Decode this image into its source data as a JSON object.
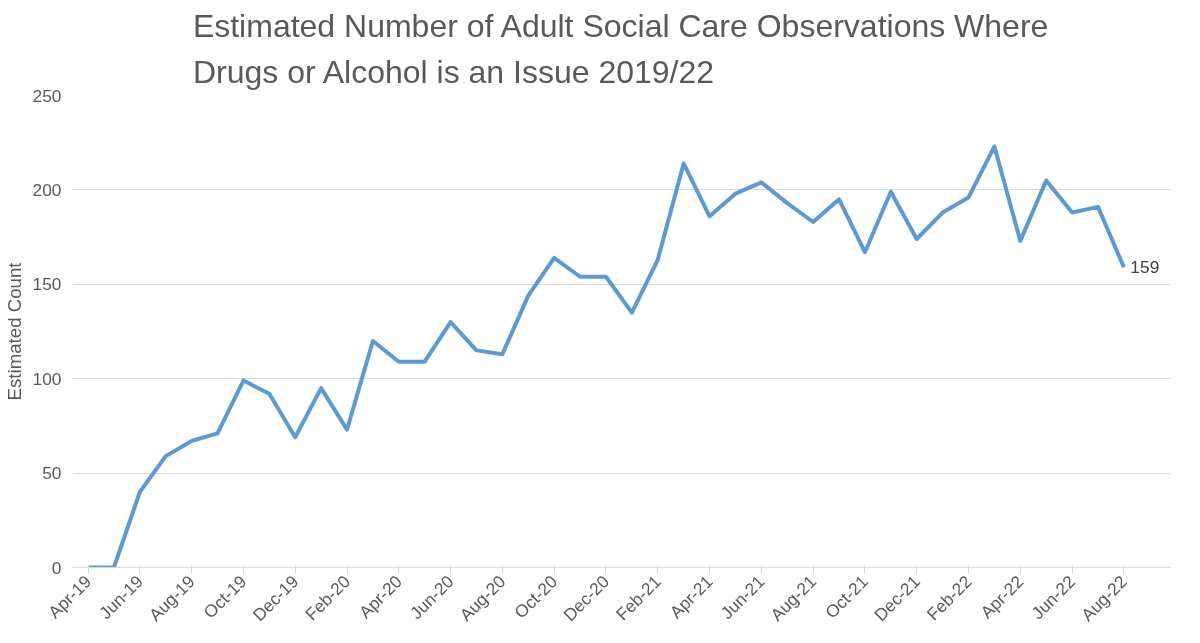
{
  "chart_data": {
    "type": "line",
    "title": "Estimated Number of Adult Social Care Observations Where\nDrugs or Alcohol is an Issue 2019/22",
    "ylabel": "Estimated Count",
    "categories": [
      "Apr-19",
      null,
      "Jun-19",
      null,
      "Aug-19",
      null,
      "Oct-19",
      null,
      "Dec-19",
      null,
      "Feb-20",
      null,
      "Apr-20",
      null,
      "Jun-20",
      null,
      "Aug-20",
      null,
      "Oct-20",
      null,
      "Dec-20",
      null,
      "Feb-21",
      null,
      "Apr-21",
      null,
      "Jun-21",
      null,
      "Aug-21",
      null,
      "Oct-21",
      null,
      "Dec-21",
      null,
      "Feb-22",
      null,
      "Apr-22",
      null,
      "Jun-22",
      null,
      "Aug-22"
    ],
    "series": [
      {
        "color": "#5b9bd5",
        "values": [
          0,
          0,
          40,
          59,
          67,
          71,
          99,
          92,
          69,
          95,
          73,
          120,
          109,
          109,
          130,
          115,
          113,
          144,
          164,
          154,
          154,
          135,
          163,
          214,
          186,
          198,
          204,
          193,
          183,
          195,
          167,
          199,
          174,
          188,
          196,
          223,
          173,
          205,
          188,
          191,
          159
        ],
        "value_labels": [
          null,
          null,
          null,
          null,
          null,
          null,
          null,
          null,
          null,
          null,
          null,
          null,
          null,
          null,
          null,
          null,
          null,
          null,
          null,
          null,
          null,
          null,
          null,
          null,
          null,
          null,
          null,
          null,
          null,
          null,
          null,
          null,
          null,
          null,
          null,
          null,
          null,
          null,
          null,
          null,
          "159"
        ]
      }
    ],
    "ylim": [
      0,
      250
    ],
    "yticks": [
      0,
      50,
      100,
      150,
      200,
      250
    ],
    "grid": "y",
    "marker": "none",
    "line_style": "solid"
  }
}
